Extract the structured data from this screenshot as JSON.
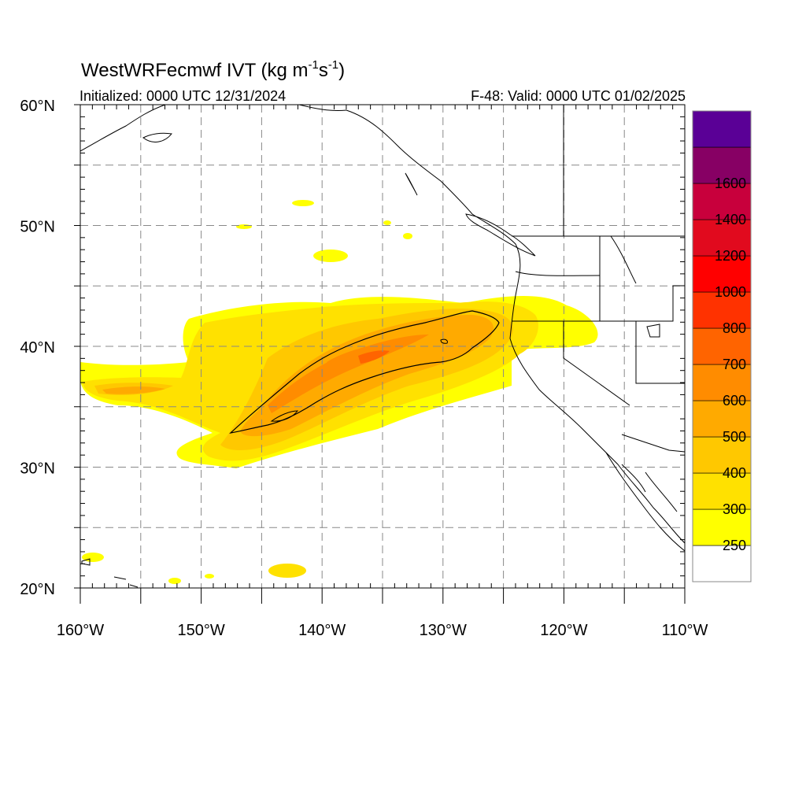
{
  "title": {
    "main": "WestWRFecmwf IVT (kg m",
    "exp1": "-1",
    "mid": "s",
    "exp2": "-1",
    "close": ")"
  },
  "initialized": "Initialized: 0000 UTC 12/31/2024",
  "valid": "F-48: Valid: 0000 UTC 01/02/2025",
  "map": {
    "lon_range": [
      -160,
      -110
    ],
    "lat_range": [
      20,
      60
    ],
    "grid_lons": [
      -155,
      -150,
      -145,
      -140,
      -135,
      -130,
      -125,
      -120,
      -115
    ],
    "grid_lats": [
      25,
      30,
      35,
      40,
      45,
      50,
      55
    ],
    "lat_ticks": [
      {
        "value": 60,
        "label": "60°N"
      },
      {
        "value": 50,
        "label": "50°N"
      },
      {
        "value": 40,
        "label": "40°N"
      },
      {
        "value": 30,
        "label": "30°N"
      },
      {
        "value": 20,
        "label": "20°N"
      }
    ],
    "lon_ticks": [
      {
        "value": -160,
        "label": "160°W"
      },
      {
        "value": -150,
        "label": "150°W"
      },
      {
        "value": -140,
        "label": "140°W"
      },
      {
        "value": -130,
        "label": "130°W"
      },
      {
        "value": -120,
        "label": "120°W"
      },
      {
        "value": -110,
        "label": "110°W"
      }
    ]
  },
  "colorbar": {
    "colors": [
      "#ffffff",
      "#ffff00",
      "#ffe100",
      "#ffc800",
      "#ffaa00",
      "#ff8c00",
      "#ff6400",
      "#ff3200",
      "#ff0000",
      "#e10a1e",
      "#c8003c",
      "#870064",
      "#5a0096"
    ],
    "labels": [
      "250",
      "300",
      "400",
      "500",
      "600",
      "700",
      "800",
      "1000",
      "1200",
      "1400",
      "1600"
    ]
  },
  "colors": {
    "land": "#000000",
    "grid": "#888888",
    "contour": "#000000"
  }
}
